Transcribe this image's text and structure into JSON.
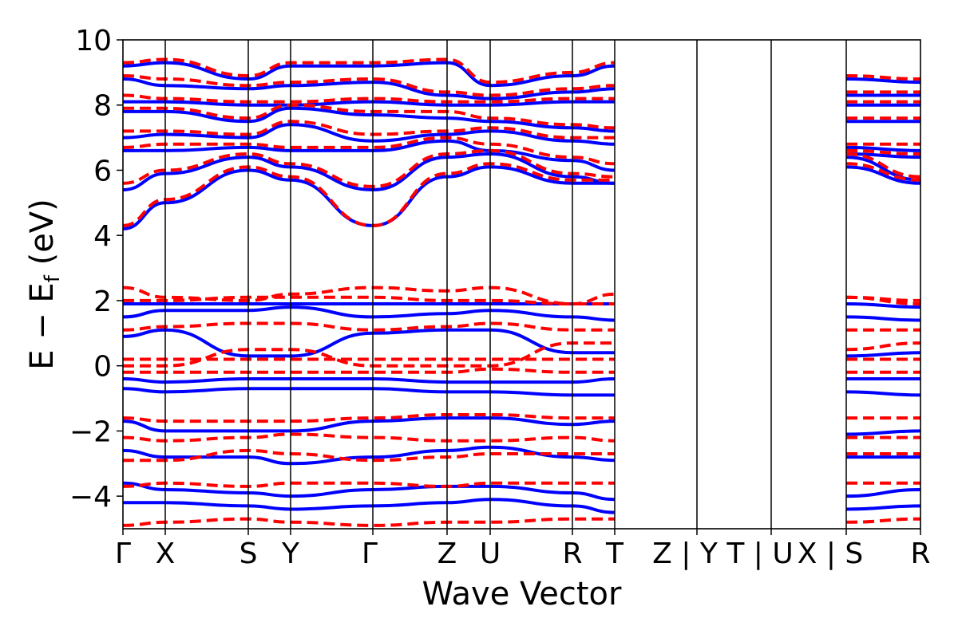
{
  "chart_data": {
    "type": "line",
    "xlabel": "Wave Vector",
    "ylabel": "E − E_f (eV)",
    "ylabel_main": "E − E",
    "ylabel_sub": "f",
    "ylabel_unit": " (eV)",
    "ylim": [
      -5,
      10
    ],
    "yticks": [
      -4,
      -2,
      0,
      2,
      4,
      6,
      8,
      10
    ],
    "ytick_labels": [
      "−4",
      "−2",
      "0",
      "2",
      "4",
      "6",
      "8",
      "10"
    ],
    "kpath_ticks": [
      "Γ",
      "X",
      "S",
      "Y",
      "Γ",
      "Z",
      "U",
      "R",
      "T",
      "Z|Y",
      "T|U",
      "X|S",
      "R"
    ],
    "xtick_labels": [
      "Γ",
      "X",
      "S",
      "Y",
      "Γ",
      "Z",
      "U",
      "R",
      "T",
      "Z | Y",
      "T | U",
      "X | S",
      "R"
    ],
    "segment_breaks": [
      9,
      10,
      11
    ],
    "grid": false,
    "series": [
      {
        "style": "solid",
        "color": "#0000ff",
        "gaps": [
          {
            "bands": [
              [
                -4.2,
                -4.2,
                -4.3,
                -4.4,
                -4.3,
                -4.2,
                -4.1,
                -4.3,
                -4.5,
                -4.4,
                -4.3,
                -4.4,
                -4.3
              ],
              [
                -3.6,
                -3.8,
                -3.9,
                -4.0,
                -3.8,
                -3.7,
                -3.7,
                -3.9,
                -4.1,
                -4.0,
                -3.9,
                -4.0,
                -3.8
              ],
              [
                -2.6,
                -2.8,
                -2.8,
                -3.0,
                -2.8,
                -2.6,
                -2.5,
                -2.8,
                -2.9,
                -2.8,
                -2.8,
                -2.8,
                -2.8
              ],
              [
                -1.7,
                -2.0,
                -2.0,
                -2.0,
                -1.7,
                -1.6,
                -1.6,
                -1.8,
                -1.7,
                -1.9,
                -2.0,
                -2.1,
                -2.0
              ],
              [
                -0.7,
                -0.8,
                -0.7,
                -0.7,
                -0.7,
                -0.8,
                -0.8,
                -0.9,
                -0.9,
                -0.9,
                -0.8,
                -0.8,
                -0.9
              ],
              [
                -0.4,
                -0.5,
                -0.4,
                -0.4,
                -0.4,
                -0.5,
                -0.5,
                -0.5,
                -0.4,
                -0.4,
                -0.4,
                -0.4,
                -0.4
              ],
              [
                0.9,
                1.1,
                0.3,
                0.3,
                1.0,
                1.1,
                1.1,
                0.4,
                0.4,
                0.4,
                1.0,
                0.3,
                0.4
              ],
              [
                1.5,
                1.7,
                1.7,
                1.8,
                1.5,
                1.6,
                1.7,
                1.5,
                1.4,
                1.4,
                1.5,
                1.5,
                1.4
              ],
              [
                1.9,
                1.9,
                1.9,
                1.9,
                1.9,
                1.9,
                1.9,
                1.9,
                1.9,
                1.9,
                1.9,
                1.9,
                1.8
              ],
              [
                4.2,
                5.0,
                6.0,
                5.7,
                4.3,
                5.8,
                6.1,
                5.6,
                5.6,
                5.7,
                5.0,
                6.1,
                5.6
              ],
              [
                5.4,
                5.9,
                6.4,
                6.1,
                5.4,
                6.4,
                6.5,
                5.8,
                5.6,
                5.7,
                5.9,
                6.4,
                5.7
              ],
              [
                6.6,
                6.6,
                6.7,
                6.6,
                6.6,
                6.9,
                6.6,
                6.3,
                6.0,
                6.4,
                6.6,
                6.5,
                6.4
              ],
              [
                7.0,
                7.1,
                7.0,
                7.4,
                6.9,
                7.1,
                7.2,
                6.9,
                6.8,
                6.7,
                7.1,
                6.7,
                6.6
              ],
              [
                7.8,
                7.8,
                7.5,
                7.9,
                7.7,
                7.6,
                7.5,
                7.3,
                7.2,
                7.3,
                7.3,
                7.5,
                7.5
              ],
              [
                8.1,
                8.1,
                8.0,
                8.0,
                8.1,
                8.0,
                8.0,
                8.1,
                8.1,
                8.0,
                7.9,
                8.0,
                8.0
              ],
              [
                8.8,
                8.6,
                8.5,
                8.6,
                8.7,
                8.3,
                8.2,
                8.4,
                8.5,
                8.6,
                8.8,
                8.3,
                8.3
              ],
              [
                9.2,
                9.3,
                8.8,
                9.2,
                9.2,
                9.3,
                8.6,
                8.9,
                9.2,
                8.9,
                9.2,
                8.8,
                8.7
              ]
            ]
          }
        ]
      },
      {
        "style": "dashed",
        "color": "#ff0000",
        "gaps": [
          {
            "bands": [
              [
                -4.9,
                -4.8,
                -4.7,
                -4.8,
                -4.9,
                -4.8,
                -4.8,
                -4.7,
                -4.7,
                -4.8,
                -4.7,
                -4.8,
                -4.7
              ],
              [
                -3.7,
                -3.6,
                -3.7,
                -3.6,
                -3.6,
                -3.7,
                -3.6,
                -3.6,
                -3.6,
                -3.6,
                -3.6,
                -3.6,
                -3.6
              ],
              [
                -2.9,
                -2.9,
                -2.6,
                -2.7,
                -2.9,
                -2.8,
                -2.7,
                -2.7,
                -2.7,
                -2.7,
                -2.9,
                -2.7,
                -2.7
              ],
              [
                -2.2,
                -2.3,
                -2.2,
                -2.1,
                -2.2,
                -2.3,
                -2.3,
                -2.2,
                -2.3,
                -2.2,
                -2.2,
                -2.2,
                -2.2
              ],
              [
                -1.6,
                -1.7,
                -1.7,
                -1.7,
                -1.6,
                -1.5,
                -1.5,
                -1.6,
                -1.6,
                -1.6,
                -1.6,
                -1.6,
                -1.6
              ],
              [
                -0.2,
                -0.2,
                -0.2,
                -0.2,
                -0.2,
                -0.2,
                -0.1,
                -0.2,
                -0.2,
                -0.2,
                -0.2,
                -0.2,
                -0.2
              ],
              [
                0.2,
                0.2,
                0.2,
                0.2,
                0.2,
                0.2,
                0.2,
                0.2,
                0.2,
                0.2,
                0.2,
                0.2,
                0.2
              ],
              [
                0.0,
                0.0,
                0.5,
                0.5,
                0.0,
                0.0,
                0.0,
                0.7,
                0.7,
                0.8,
                0.0,
                0.5,
                0.7
              ],
              [
                1.1,
                1.2,
                1.3,
                1.3,
                1.1,
                1.2,
                1.3,
                1.1,
                1.1,
                1.2,
                1.1,
                1.1,
                1.1
              ],
              [
                2.0,
                2.0,
                2.1,
                2.1,
                2.1,
                2.0,
                2.0,
                1.9,
                1.9,
                2.1,
                2.0,
                2.1,
                1.9
              ],
              [
                2.4,
                2.1,
                2.0,
                2.2,
                2.4,
                2.3,
                2.4,
                1.9,
                2.2,
                2.2,
                2.4,
                2.1,
                2.0
              ],
              [
                4.3,
                5.1,
                6.1,
                5.8,
                4.3,
                5.9,
                6.2,
                5.7,
                5.7,
                5.8,
                5.1,
                6.2,
                5.7
              ],
              [
                5.6,
                6.0,
                6.5,
                6.2,
                5.5,
                6.5,
                6.6,
                5.9,
                5.8,
                5.9,
                6.0,
                6.5,
                5.8
              ],
              [
                6.7,
                6.8,
                6.8,
                6.7,
                6.7,
                7.0,
                6.8,
                6.4,
                6.2,
                6.5,
                6.8,
                6.6,
                6.5
              ],
              [
                7.2,
                7.2,
                7.1,
                7.5,
                7.1,
                7.2,
                7.3,
                7.0,
                7.0,
                6.9,
                7.2,
                6.8,
                6.8
              ],
              [
                7.9,
                7.9,
                7.6,
                8.0,
                7.8,
                7.8,
                7.6,
                7.4,
                7.3,
                7.4,
                7.4,
                7.6,
                7.6
              ],
              [
                8.3,
                8.2,
                8.1,
                8.1,
                8.2,
                8.1,
                8.1,
                8.2,
                8.2,
                8.1,
                8.0,
                8.1,
                8.1
              ],
              [
                8.9,
                8.8,
                8.6,
                8.7,
                8.8,
                8.4,
                8.3,
                8.5,
                8.6,
                8.7,
                8.9,
                8.4,
                8.4
              ],
              [
                9.3,
                9.4,
                8.9,
                9.3,
                9.3,
                9.4,
                8.7,
                9.0,
                9.3,
                9.0,
                9.3,
                8.9,
                8.8
              ]
            ]
          }
        ]
      }
    ]
  }
}
